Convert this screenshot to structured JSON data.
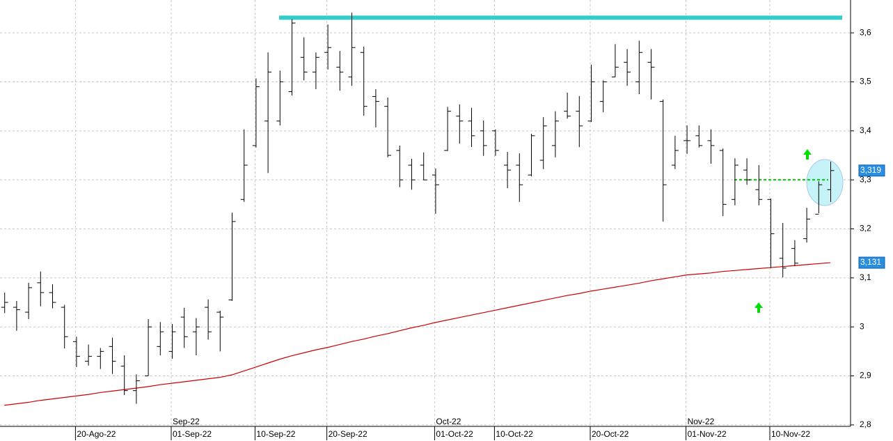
{
  "chart_data": {
    "type": "ohlc",
    "categories": [
      null,
      null,
      null,
      null,
      null,
      null,
      "20-Ago-22",
      null,
      null,
      null,
      null,
      null,
      null,
      null,
      "01-Sep-22",
      null,
      null,
      null,
      null,
      null,
      null,
      "10-Sep-22",
      null,
      null,
      null,
      null,
      null,
      "20-Sep-22",
      null,
      null,
      null,
      null,
      null,
      null,
      null,
      null,
      "01-Oct-22",
      null,
      null,
      null,
      null,
      "10-Oct-22",
      null,
      null,
      null,
      null,
      null,
      null,
      null,
      "20-Oct-22",
      null,
      null,
      null,
      null,
      null,
      null,
      null,
      "01-Nov-22",
      null,
      null,
      null,
      null,
      null,
      null,
      "10-Nov-22",
      null,
      null,
      null,
      null,
      null
    ],
    "month_labels": [
      null,
      null,
      null,
      null,
      null,
      null,
      null,
      null,
      null,
      null,
      null,
      null,
      null,
      null,
      "Sep-22",
      null,
      null,
      null,
      null,
      null,
      null,
      null,
      null,
      null,
      null,
      null,
      null,
      null,
      null,
      null,
      null,
      null,
      null,
      null,
      null,
      null,
      "Oct-22",
      null,
      null,
      null,
      null,
      null,
      null,
      null,
      null,
      null,
      null,
      null,
      null,
      null,
      null,
      null,
      null,
      null,
      null,
      null,
      null,
      "Nov-22",
      null,
      null,
      null,
      null,
      null,
      null,
      null,
      null,
      null,
      null,
      null,
      null
    ],
    "open": [
      3.04,
      3.04,
      3.03,
      3.09,
      3.07,
      3.04,
      2.97,
      2.93,
      2.94,
      2.96,
      2.92,
      2.87,
      2.9,
      2.96,
      2.95,
      3.02,
      2.99,
      3.04,
      3.03,
      3.055,
      3.26,
      3.37,
      3.42,
      3.42,
      3.48,
      3.55,
      3.52,
      3.56,
      3.53,
      3.51,
      3.56,
      3.47,
      3.45,
      3.36,
      3.33,
      3.33,
      3.31,
      3.36,
      3.43,
      3.42,
      3.4,
      3.4,
      3.33,
      3.33,
      3.31,
      3.34,
      3.37,
      3.44,
      3.44,
      3.42,
      3.46,
      3.51,
      3.54,
      3.5,
      3.54,
      3.46,
      3.33,
      3.38,
      3.39,
      3.38,
      3.36,
      3.26,
      3.32,
      3.28,
      3.26,
      3.14,
      3.16,
      3.18,
      3.23,
      3.28
    ],
    "high": [
      3.07,
      3.053,
      3.09,
      3.113,
      3.087,
      3.045,
      2.98,
      2.964,
      2.957,
      2.978,
      2.942,
      2.903,
      3.016,
      3.01,
      3.006,
      3.039,
      3.018,
      3.056,
      3.033,
      3.233,
      3.403,
      3.507,
      3.56,
      3.523,
      3.628,
      3.591,
      3.56,
      3.617,
      3.563,
      3.641,
      3.572,
      3.485,
      3.468,
      3.37,
      3.343,
      3.356,
      3.323,
      3.449,
      3.454,
      3.447,
      3.421,
      3.403,
      3.357,
      3.354,
      3.394,
      3.428,
      3.44,
      3.478,
      3.471,
      3.535,
      3.503,
      3.577,
      3.567,
      3.584,
      3.567,
      3.464,
      3.39,
      3.411,
      3.411,
      3.403,
      3.364,
      3.344,
      3.344,
      3.33,
      3.262,
      3.212,
      3.177,
      3.243,
      3.297,
      3.337
    ],
    "low": [
      3.028,
      2.992,
      3.016,
      3.042,
      3.038,
      2.956,
      2.918,
      2.921,
      2.914,
      2.904,
      2.861,
      2.843,
      2.9,
      2.942,
      2.935,
      2.957,
      2.942,
      2.974,
      2.95,
      3.053,
      3.255,
      3.366,
      3.314,
      3.411,
      3.472,
      3.503,
      3.485,
      3.525,
      3.482,
      3.492,
      3.431,
      3.407,
      3.346,
      3.285,
      3.28,
      3.299,
      3.231,
      3.359,
      3.374,
      3.367,
      3.349,
      3.349,
      3.283,
      3.255,
      3.307,
      3.322,
      3.346,
      3.425,
      3.367,
      3.418,
      3.438,
      3.51,
      3.492,
      3.475,
      3.464,
      3.215,
      3.322,
      3.353,
      3.366,
      3.333,
      3.226,
      3.248,
      3.29,
      3.248,
      3.12,
      3.101,
      3.124,
      3.172,
      3.232,
      3.255
    ],
    "close": [
      3.05,
      3.035,
      3.08,
      3.07,
      3.05,
      2.98,
      2.94,
      2.94,
      2.95,
      2.93,
      2.87,
      2.89,
      3.0,
      2.99,
      2.99,
      2.98,
      3.0,
      2.99,
      3.02,
      3.215,
      3.33,
      3.49,
      3.52,
      3.5,
      3.62,
      3.52,
      3.55,
      3.57,
      3.52,
      3.57,
      3.45,
      3.46,
      3.35,
      3.3,
      3.3,
      3.3,
      3.29,
      3.44,
      3.42,
      3.39,
      3.37,
      3.36,
      3.32,
      3.29,
      3.39,
      3.41,
      3.42,
      3.43,
      3.41,
      3.5,
      3.5,
      3.53,
      3.52,
      3.56,
      3.53,
      3.29,
      3.36,
      3.38,
      3.37,
      3.37,
      3.25,
      3.33,
      3.3,
      3.26,
      3.19,
      3.12,
      3.13,
      3.22,
      3.29,
      3.319
    ],
    "color": "#000000",
    "last_label": "3,319",
    "ma": {
      "color": "#cc0000",
      "last_label": "3,131",
      "values": [
        2.84,
        2.843,
        2.846,
        2.85,
        2.853,
        2.856,
        2.859,
        2.862,
        2.866,
        2.869,
        2.872,
        2.875,
        2.878,
        2.882,
        2.885,
        2.888,
        2.891,
        2.894,
        2.897,
        2.902,
        2.91,
        2.918,
        2.926,
        2.934,
        2.941,
        2.947,
        2.953,
        2.958,
        2.964,
        2.97,
        2.975,
        2.981,
        2.986,
        2.992,
        2.998,
        3.003,
        3.009,
        3.014,
        3.019,
        3.024,
        3.029,
        3.034,
        3.039,
        3.044,
        3.049,
        3.054,
        3.059,
        3.064,
        3.068,
        3.073,
        3.077,
        3.081,
        3.085,
        3.089,
        3.094,
        3.098,
        3.102,
        3.106,
        3.108,
        3.11,
        3.113,
        3.115,
        3.117,
        3.119,
        3.121,
        3.123,
        3.125,
        3.127,
        3.129,
        3.131
      ]
    },
    "lines": [
      {
        "value": 3.631,
        "color": "#33cccc"
      },
      {
        "value": 3.3,
        "color": "#00cc00",
        "dashed": true
      }
    ],
    "ylim": [
      2.797,
      3.667
    ],
    "yticks": [
      {
        "value": 2.8,
        "label": "2,8"
      },
      {
        "value": 2.9,
        "label": "2,9"
      },
      3,
      {
        "value": 3.1,
        "label": "3,1"
      },
      {
        "value": 3.2,
        "label": "3,2"
      },
      {
        "value": 3.3,
        "label": "3,3"
      },
      {
        "value": 3.4,
        "label": "3,4"
      },
      {
        "value": 3.5,
        "label": "3,5"
      },
      {
        "value": 3.6,
        "label": "3,6"
      }
    ],
    "grid": true
  }
}
